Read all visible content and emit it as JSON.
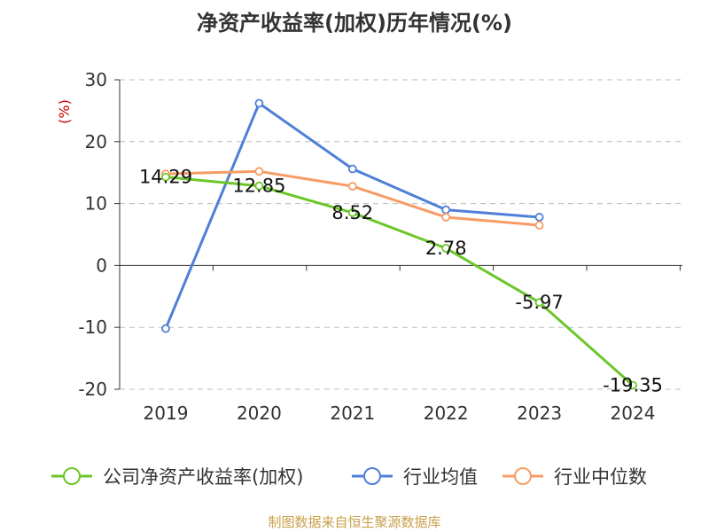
{
  "title": "净资产收益率(加权)历年情况(%)",
  "source": "制图数据来自恒生聚源数据库",
  "colors": {
    "company": "#6cc62a",
    "industry_avg": "#4f7fd8",
    "industry_median": "#f79c65",
    "ylabel": "#cc0000"
  },
  "chart_data": {
    "type": "line",
    "ylabel": "(%)",
    "categories": [
      "2019",
      "2020",
      "2021",
      "2022",
      "2023",
      "2024"
    ],
    "ylim": [
      -20,
      30
    ],
    "yticks": [
      -20,
      -10,
      0,
      10,
      20,
      30
    ],
    "grid": true,
    "legend_position": "bottom",
    "series": [
      {
        "name": "公司净资产收益率(加权)",
        "values": [
          14.29,
          12.85,
          8.52,
          2.78,
          -5.97,
          -19.35
        ],
        "labels": [
          "14.29",
          "12.85",
          "8.52",
          "2.78",
          "-5.97",
          "-19.35"
        ],
        "color": "#6cc62a"
      },
      {
        "name": "行业均值",
        "values": [
          -10.2,
          26.2,
          15.6,
          9.0,
          7.8,
          null
        ],
        "color": "#4f7fd8"
      },
      {
        "name": "行业中位数",
        "values": [
          14.8,
          15.2,
          12.8,
          7.8,
          6.5,
          null
        ],
        "color": "#f79c65"
      }
    ]
  }
}
